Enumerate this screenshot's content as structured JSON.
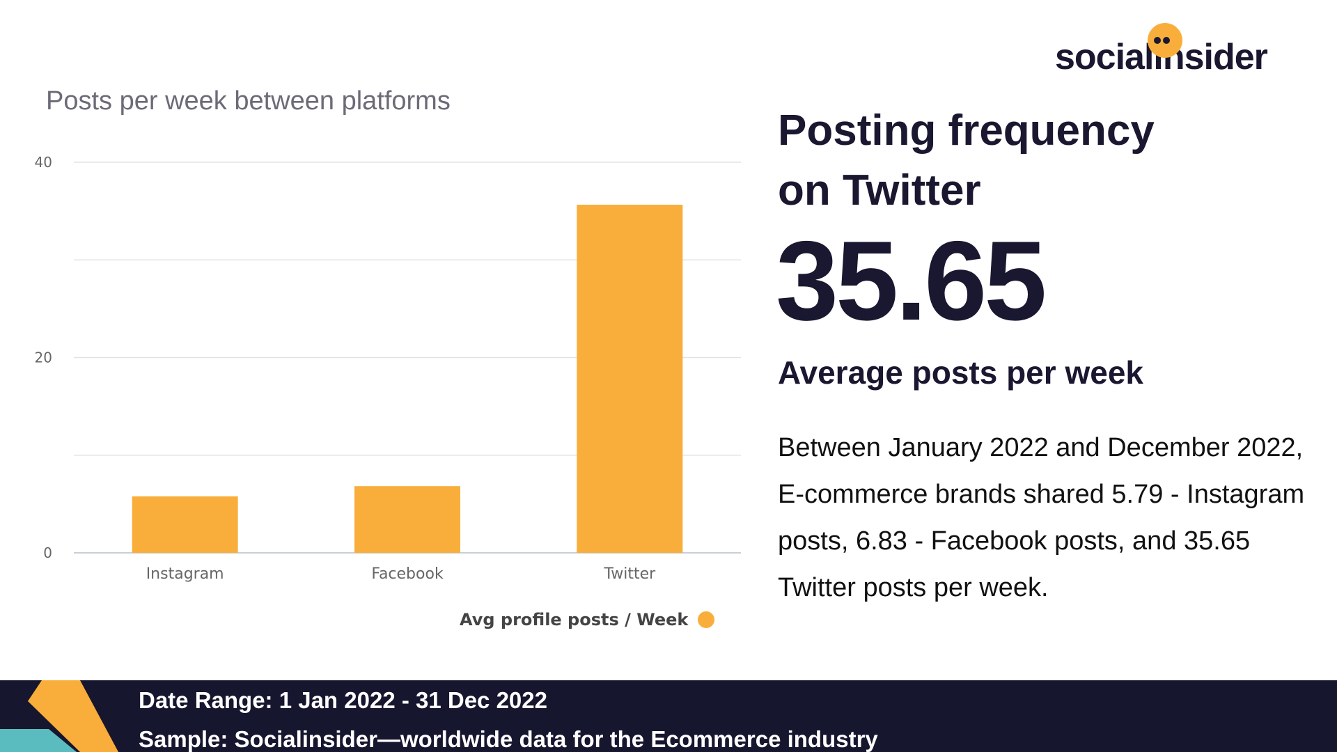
{
  "brand": {
    "logo_text": "socialinsider",
    "accent_color": "#f9ae3b",
    "dark_color": "#17162f",
    "teal_color": "#5bbcbf"
  },
  "headline": {
    "title_line1": "Posting frequency",
    "title_line2": "on Twitter",
    "big_number": "35.65",
    "subtitle": "Average posts per week",
    "description": "Between January 2022 and December 2022,  E-commerce brands shared 5.79 - Instagram posts, 6.83 - Facebook posts, and 35.65 Twitter posts per week."
  },
  "footer": {
    "date_range": "Date Range: 1 Jan 2022 - 31 Dec 2022",
    "sample": "Sample: Socialinsider—worldwide data for the Ecommerce industry"
  },
  "chart_data": {
    "type": "bar",
    "title": "Posts per week between platforms",
    "categories": [
      "Instagram",
      "Facebook",
      "Twitter"
    ],
    "series": [
      {
        "name": "Avg profile posts / Week",
        "values": [
          5.79,
          6.83,
          35.65
        ],
        "color": "#f9ae3b"
      }
    ],
    "ylim": [
      0,
      40
    ],
    "yticks": [
      0,
      20,
      40
    ],
    "gridlines": [
      0,
      10,
      20,
      30,
      40
    ],
    "xlabel": "",
    "ylabel": "",
    "legend_position": "bottom-right"
  }
}
